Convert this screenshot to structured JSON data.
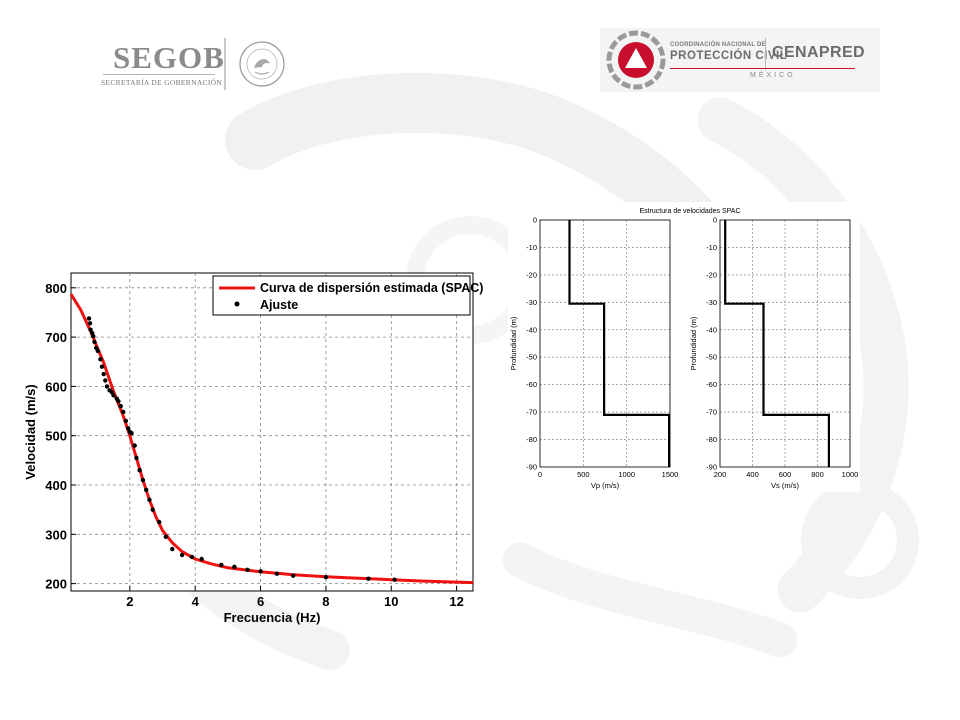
{
  "header": {
    "segob_wordmark": "SEGOB",
    "segob_subtitle": "SECRETARÍA DE GOBERNACIÓN",
    "seal_text": "ESTADOS UNIDOS MEXICANOS",
    "cnpc_line1": "COORDINACIÓN NACIONAL DE",
    "cnpc_line2": "PROTECCIÓN CIVIL",
    "cenapred": "CENAPRED",
    "mexico": "MÉXICO"
  },
  "colors": {
    "curve": "#ee1111",
    "points": "#000000",
    "profile": "#000000",
    "grid": "#888888",
    "cenapred_red": "#c8102e"
  },
  "chart_data": [
    {
      "type": "scatter",
      "title": "",
      "xlabel": "Frecuencia (Hz)",
      "ylabel": "Velocidad (m/s)",
      "xlim": [
        0.2,
        12.5
      ],
      "ylim": [
        185,
        830
      ],
      "x_ticks": [
        2,
        4,
        6,
        8,
        10,
        12
      ],
      "y_ticks": [
        200,
        300,
        400,
        500,
        600,
        700,
        800
      ],
      "grid": true,
      "legend_position": "top-right",
      "series": [
        {
          "name": "Curva de dispersión estimada (SPAC)",
          "kind": "line",
          "x": [
            0.2,
            0.5,
            0.8,
            1.0,
            1.2,
            1.5,
            1.8,
            2.0,
            2.2,
            2.4,
            2.6,
            2.8,
            3.0,
            3.3,
            3.6,
            4.0,
            4.5,
            5.0,
            6.0,
            7.0,
            8.0,
            9.0,
            10.0,
            11.0,
            12.0,
            12.5
          ],
          "y": [
            787,
            755,
            712,
            680,
            648,
            590,
            540,
            500,
            455,
            410,
            370,
            335,
            308,
            283,
            265,
            250,
            240,
            232,
            224,
            218,
            214,
            211,
            208,
            205,
            203,
            202
          ]
        },
        {
          "name": "Ajuste",
          "kind": "scatter",
          "x": [
            0.75,
            0.78,
            0.8,
            0.85,
            0.88,
            0.92,
            0.97,
            1.02,
            1.1,
            1.15,
            1.2,
            1.25,
            1.3,
            1.38,
            1.45,
            1.5,
            1.6,
            1.65,
            1.72,
            1.8,
            1.88,
            1.95,
            2.0,
            2.05,
            2.15,
            2.2,
            2.3,
            2.4,
            2.5,
            2.6,
            2.7,
            2.9,
            3.1,
            3.3,
            3.6,
            3.9,
            4.2,
            4.8,
            5.2,
            5.6,
            6.0,
            6.5,
            7.0,
            8.0,
            9.3,
            10.1
          ],
          "y": [
            738,
            728,
            715,
            708,
            702,
            690,
            678,
            672,
            655,
            640,
            625,
            612,
            600,
            592,
            588,
            582,
            575,
            570,
            560,
            548,
            530,
            515,
            508,
            505,
            480,
            455,
            430,
            410,
            390,
            370,
            350,
            325,
            295,
            270,
            258,
            254,
            250,
            238,
            234,
            228,
            225,
            220,
            216,
            213,
            210,
            208
          ]
        }
      ]
    },
    {
      "type": "line",
      "title": "Estructura de velocidades SPAC",
      "panels": [
        {
          "xlabel": "Vp (m/s)",
          "ylabel": "Profundidad (m)",
          "xlim": [
            0,
            1500
          ],
          "ylim": [
            -90,
            0
          ],
          "x_ticks": [
            0,
            500,
            1000,
            1500
          ],
          "y_ticks": [
            0,
            -10,
            -20,
            -30,
            -40,
            -50,
            -60,
            -70,
            -80,
            -90
          ],
          "grid": true,
          "profile": [
            [
              340,
              0
            ],
            [
              340,
              -30.5
            ],
            [
              740,
              -30.5
            ],
            [
              740,
              -71
            ],
            [
              1490,
              -71
            ],
            [
              1490,
              -90
            ]
          ]
        },
        {
          "xlabel": "Vs (m/s)",
          "ylabel": "Profundidad (m)",
          "xlim": [
            200,
            1000
          ],
          "ylim": [
            -90,
            0
          ],
          "x_ticks": [
            200,
            400,
            600,
            800,
            1000
          ],
          "y_ticks": [
            0,
            -10,
            -20,
            -30,
            -40,
            -50,
            -60,
            -70,
            -80,
            -90
          ],
          "grid": true,
          "profile": [
            [
              232,
              0
            ],
            [
              232,
              -30.5
            ],
            [
              468,
              -30.5
            ],
            [
              468,
              -71
            ],
            [
              870,
              -71
            ],
            [
              870,
              -90
            ]
          ]
        }
      ]
    }
  ]
}
